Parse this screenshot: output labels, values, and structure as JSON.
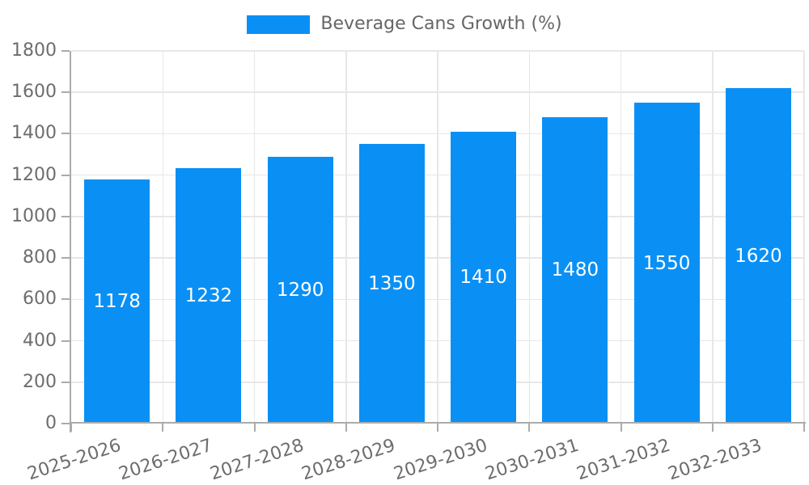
{
  "chart_data": {
    "type": "bar",
    "title": "Beverage Cans Growth (%)",
    "series_name": "Beverage Cans Growth (%)",
    "categories": [
      "2025-2026",
      "2026-2027",
      "2027-2028",
      "2028-2029",
      "2029-2030",
      "2030-2031",
      "2031-2032",
      "2032-2033"
    ],
    "values": [
      1178,
      1232,
      1290,
      1350,
      1410,
      1480,
      1550,
      1620
    ],
    "value_labels_shown": true,
    "xlabel": "",
    "ylabel": "",
    "ylim": [
      0,
      1800
    ],
    "yticks": [
      0,
      200,
      400,
      600,
      800,
      1000,
      1200,
      1400,
      1600,
      1800
    ],
    "grid": true,
    "legend_position": "top-center",
    "x_label_rotation_deg": -18,
    "colors": {
      "bar": "#0A90F5",
      "value_label": "#FFFFFF",
      "axis": "#ABABAB",
      "gridline": "#E7E7E7",
      "tick_label": "#6D6D6D",
      "legend_text": "#666666",
      "background": "#FFFFFF"
    }
  }
}
